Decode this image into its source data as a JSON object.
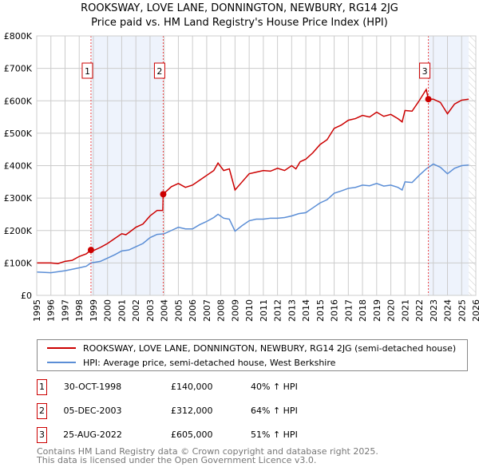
{
  "header": {
    "title": "ROOKSWAY, LOVE LANE, DONNINGTON, NEWBURY, RG14 2JG",
    "subtitle": "Price paid vs. HM Land Registry's House Price Index (HPI)"
  },
  "chart_data": {
    "type": "line",
    "title": "Price paid vs. HM Land Registry's House Price Index (HPI)",
    "xlim": [
      1995,
      2026
    ],
    "ylim": [
      0,
      800000
    ],
    "x_ticks": [
      "1995",
      "1996",
      "1997",
      "1998",
      "1999",
      "2000",
      "2001",
      "2002",
      "2003",
      "2004",
      "2005",
      "2006",
      "2007",
      "2008",
      "2009",
      "2010",
      "2011",
      "2012",
      "2013",
      "2014",
      "2015",
      "2016",
      "2017",
      "2018",
      "2019",
      "2020",
      "2021",
      "2022",
      "2023",
      "2024",
      "2025",
      "2026"
    ],
    "y_ticks": [
      {
        "v": 0,
        "label": "£0"
      },
      {
        "v": 100000,
        "label": "£100K"
      },
      {
        "v": 200000,
        "label": "£200K"
      },
      {
        "v": 300000,
        "label": "£300K"
      },
      {
        "v": 400000,
        "label": "£400K"
      },
      {
        "v": 500000,
        "label": "£500K"
      },
      {
        "v": 600000,
        "label": "£600K"
      },
      {
        "v": 700000,
        "label": "£700K"
      },
      {
        "v": 800000,
        "label": "£800K"
      }
    ],
    "grid": true,
    "colors": {
      "property": "#cc0000",
      "hpi": "#5b8ed6",
      "shade": "#eef3fc"
    },
    "shaded_ranges": [
      [
        1998.83,
        2003.93
      ],
      [
        2022.65,
        2025.5
      ]
    ],
    "hatched_from": 2025.5,
    "series": [
      {
        "name": "ROOKSWAY, LOVE LANE, DONNINGTON, NEWBURY, RG14 2JG (semi-detached house)",
        "key": "property",
        "x": [
          1995,
          1995.5,
          1996,
          1996.5,
          1997,
          1997.5,
          1998,
          1998.5,
          1998.83,
          1999,
          1999.5,
          2000,
          2000.5,
          2001,
          2001.3,
          2001.7,
          2002,
          2002.5,
          2003,
          2003.5,
          2003.9,
          2003.93,
          2004.5,
          2005,
          2005.5,
          2006,
          2006.5,
          2007,
          2007.5,
          2007.8,
          2008.2,
          2008.6,
          2009,
          2009.5,
          2010,
          2010.5,
          2011,
          2011.5,
          2012,
          2012.5,
          2013,
          2013.3,
          2013.6,
          2014,
          2014.5,
          2015,
          2015.5,
          2016,
          2016.5,
          2017,
          2017.5,
          2018,
          2018.5,
          2019,
          2019.5,
          2020,
          2020.5,
          2020.8,
          2021,
          2021.5,
          2022,
          2022.5,
          2022.65,
          2023,
          2023.5,
          2024,
          2024.5,
          2025,
          2025.5
        ],
        "y": [
          100,
          100,
          100,
          98,
          105,
          108,
          120,
          128,
          140,
          138,
          148,
          160,
          175,
          190,
          187,
          200,
          210,
          220,
          245,
          262,
          262,
          312,
          335,
          345,
          333,
          340,
          355,
          370,
          385,
          408,
          385,
          390,
          325,
          350,
          375,
          380,
          385,
          383,
          392,
          385,
          400,
          390,
          412,
          420,
          440,
          465,
          480,
          515,
          525,
          540,
          545,
          555,
          550,
          565,
          552,
          558,
          545,
          535,
          570,
          568,
          600,
          635,
          605,
          605,
          595,
          560,
          590,
          602,
          605
        ]
      },
      {
        "name": "HPI: Average price, semi-detached house, West Berkshire",
        "key": "hpi",
        "x": [
          1995,
          1996,
          1996.5,
          1997,
          1998,
          1998.5,
          1998.83,
          1999.5,
          2000,
          2000.5,
          2001,
          2001.5,
          2002,
          2002.5,
          2003,
          2003.5,
          2004,
          2004.5,
          2005,
          2005.5,
          2006,
          2006.5,
          2007,
          2007.5,
          2007.8,
          2008.2,
          2008.6,
          2009,
          2009.5,
          2010,
          2010.5,
          2011,
          2011.5,
          2012,
          2012.5,
          2013,
          2013.5,
          2014,
          2014.5,
          2015,
          2015.5,
          2016,
          2016.5,
          2017,
          2017.5,
          2018,
          2018.5,
          2019,
          2019.5,
          2020,
          2020.5,
          2020.8,
          2021,
          2021.5,
          2022,
          2022.5,
          2023,
          2023.5,
          2024,
          2024.5,
          2025,
          2025.5
        ],
        "y": [
          72,
          70,
          73,
          76,
          85,
          90,
          100,
          105,
          115,
          125,
          137,
          140,
          150,
          160,
          178,
          188,
          190,
          200,
          210,
          205,
          205,
          218,
          228,
          240,
          250,
          238,
          235,
          198,
          215,
          230,
          235,
          235,
          238,
          238,
          240,
          245,
          252,
          255,
          270,
          285,
          295,
          315,
          322,
          330,
          333,
          340,
          338,
          345,
          337,
          340,
          333,
          325,
          350,
          348,
          370,
          390,
          405,
          395,
          375,
          392,
          400,
          402
        ]
      }
    ],
    "y_units": "thousands GBP",
    "sales": [
      {
        "n": "1",
        "x": 1998.83,
        "y": 140,
        "date": "30-OCT-1998",
        "price": "£140,000",
        "hpi": "40% ↑ HPI"
      },
      {
        "n": "2",
        "x": 2003.93,
        "y": 312,
        "date": "05-DEC-2003",
        "price": "£312,000",
        "hpi": "64% ↑ HPI"
      },
      {
        "n": "3",
        "x": 2022.65,
        "y": 605,
        "date": "25-AUG-2022",
        "price": "£605,000",
        "hpi": "51% ↑ HPI"
      }
    ]
  },
  "legend": {
    "property": "ROOKSWAY, LOVE LANE, DONNINGTON, NEWBURY, RG14 2JG (semi-detached house)",
    "hpi": "HPI: Average price, semi-detached house, West Berkshire"
  },
  "footer": {
    "line1": "Contains HM Land Registry data © Crown copyright and database right 2025.",
    "line2": "This data is licensed under the Open Government Licence v3.0."
  }
}
